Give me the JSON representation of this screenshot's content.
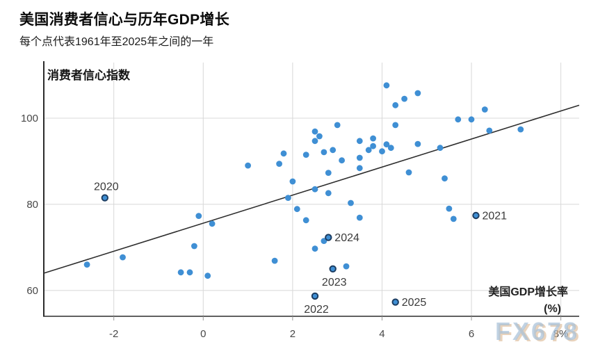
{
  "watermark": "FX678",
  "colors": {
    "dot": "#3F8FD4",
    "dot_outline": "#1C3C60",
    "trendline": "#2e2e2e",
    "gridline": "#d8d8d8",
    "axis": "#2b2b2b",
    "tick_label": "#474747",
    "annotation": "#3a3a3a"
  },
  "chart_data": {
    "type": "scatter",
    "title": "美国消费者信心与历年GDP增长",
    "subtitle": "每个点代表1961年至2025年之间的一年",
    "ylabel": "消费者信心指数",
    "xlabel": "美国GDP增长率",
    "xlabel_unit": "(%)",
    "xlim": [
      -3.566,
      8.41
    ],
    "ylim": [
      54,
      112.9
    ],
    "grid": true,
    "legend": false,
    "x_ticks": [
      {
        "v": -2,
        "label": "-2"
      },
      {
        "v": 0,
        "label": "0"
      },
      {
        "v": 2,
        "label": "2"
      },
      {
        "v": 4,
        "label": "4"
      },
      {
        "v": 6,
        "label": "6"
      },
      {
        "v": 8,
        "label": "8%"
      }
    ],
    "y_ticks": [
      {
        "v": 60,
        "label": "60"
      },
      {
        "v": 80,
        "label": "80"
      },
      {
        "v": 100,
        "label": "100"
      }
    ],
    "points": [
      [
        -0.1,
        77.3
      ],
      [
        0.2,
        75.5
      ],
      [
        -0.2,
        70.3
      ],
      [
        -1.8,
        67.7
      ],
      [
        -2.6,
        66.0
      ],
      [
        -0.5,
        64.2
      ],
      [
        -0.3,
        64.2
      ],
      [
        0.1,
        63.4
      ],
      [
        4.1,
        107.6
      ],
      [
        4.3,
        103.0
      ],
      [
        4.3,
        98.4
      ],
      [
        3.0,
        98.4
      ],
      [
        2.5,
        96.9
      ],
      [
        2.6,
        95.8
      ],
      [
        2.5,
        94.7
      ],
      [
        3.5,
        94.7
      ],
      [
        3.8,
        95.3
      ],
      [
        3.8,
        93.5
      ],
      [
        3.7,
        92.6
      ],
      [
        4.1,
        93.9
      ],
      [
        4.2,
        93.1
      ],
      [
        4.0,
        92.3
      ],
      [
        2.9,
        92.6
      ],
      [
        2.7,
        92.1
      ],
      [
        1.8,
        91.8
      ],
      [
        2.3,
        91.5
      ],
      [
        1.7,
        89.4
      ],
      [
        1.0,
        89.0
      ],
      [
        3.1,
        90.2
      ],
      [
        3.5,
        90.8
      ],
      [
        3.5,
        88.4
      ],
      [
        2.8,
        87.3
      ],
      [
        2.0,
        85.3
      ],
      [
        4.8,
        105.8
      ],
      [
        4.5,
        104.5
      ],
      [
        6.3,
        102.0
      ],
      [
        5.7,
        99.7
      ],
      [
        6.0,
        99.7
      ],
      [
        6.4,
        97.1
      ],
      [
        7.1,
        97.4
      ],
      [
        4.8,
        94.0
      ],
      [
        5.3,
        93.1
      ],
      [
        4.6,
        87.4
      ],
      [
        5.4,
        86.0
      ],
      [
        5.5,
        79.0
      ],
      [
        5.6,
        76.6
      ],
      [
        2.5,
        83.5
      ],
      [
        2.8,
        82.6
      ],
      [
        1.9,
        81.5
      ],
      [
        3.3,
        80.3
      ],
      [
        2.1,
        78.9
      ],
      [
        3.5,
        76.9
      ],
      [
        2.3,
        76.3
      ],
      [
        2.7,
        71.5
      ],
      [
        2.5,
        69.7
      ],
      [
        1.6,
        66.9
      ],
      [
        3.2,
        65.6
      ]
    ],
    "labeled_points": [
      {
        "year": "2020",
        "x": -2.2,
        "y": 81.5,
        "anchor": "above"
      },
      {
        "year": "2021",
        "x": 6.1,
        "y": 77.4,
        "anchor": "right"
      },
      {
        "year": "2022",
        "x": 2.5,
        "y": 58.7,
        "anchor": "below"
      },
      {
        "year": "2023",
        "x": 2.9,
        "y": 65.0,
        "anchor": "below"
      },
      {
        "year": "2024",
        "x": 2.8,
        "y": 72.3,
        "anchor": "right"
      },
      {
        "year": "2025",
        "x": 4.3,
        "y": 57.3,
        "anchor": "right"
      }
    ],
    "trendline": {
      "x1": -3.566,
      "y1": 64.0,
      "x2": 8.41,
      "y2": 103.0
    }
  }
}
